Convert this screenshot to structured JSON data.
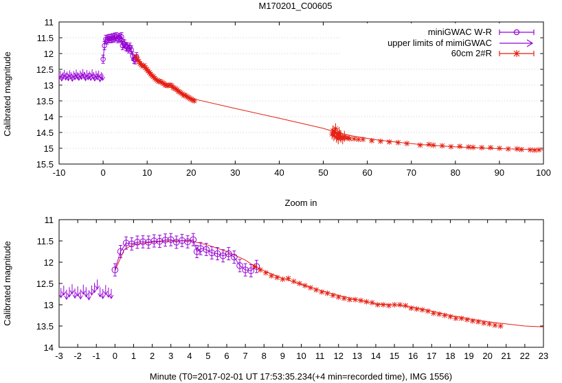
{
  "figure": {
    "xlabel": "Minute (T0=2017-02-01 UT 17:53:35.234(+4 min=recorded time), IMG 1556)"
  },
  "legend": [
    {
      "label": "miniGWAC W-R",
      "color": "#9400d3",
      "marker": "circle"
    },
    {
      "label": "upper limits of mimiGWAC",
      "color": "#9400d3",
      "marker": "arrow"
    },
    {
      "label": "60cm 2#R",
      "color": "#e51e10",
      "marker": "star"
    }
  ],
  "chart_data": [
    {
      "type": "scatter",
      "title": "M170201_C00605",
      "xlabel": "",
      "ylabel": "Calibrated magnitude",
      "xlim": [
        -10,
        100
      ],
      "ylim": [
        15.5,
        11
      ],
      "y_inverted": true,
      "xticks": [
        "-10",
        "0",
        "10",
        "20",
        "30",
        "40",
        "50",
        "60",
        "70",
        "80",
        "90",
        "100"
      ],
      "yticks": [
        "11",
        "11.5",
        "12",
        "12.5",
        "13",
        "13.5",
        "14",
        "14.5",
        "15",
        "15.5"
      ],
      "grid": "dotted",
      "legend_position": "top-right",
      "series": [
        {
          "name": "upper limits of mimiGWAC",
          "color": "#9400d3",
          "x": [
            -10,
            -9.7,
            -9.4,
            -9.1,
            -8.8,
            -8.5,
            -8.2,
            -7.9,
            -7.6,
            -7.3,
            -7.0,
            -6.7,
            -6.4,
            -6.1,
            -5.8,
            -5.5,
            -5.2,
            -4.9,
            -4.6,
            -4.3,
            -4.0,
            -3.7,
            -3.4,
            -3.1,
            -2.8,
            -2.5,
            -2.2,
            -1.9,
            -1.6,
            -1.3,
            -1.0,
            -0.7,
            -0.4,
            -0.1
          ],
          "y": [
            12.72,
            12.66,
            12.76,
            12.7,
            12.63,
            12.73,
            12.68,
            12.75,
            12.64,
            12.7,
            12.77,
            12.66,
            12.72,
            12.62,
            12.7,
            12.74,
            12.65,
            12.71,
            12.6,
            12.69,
            12.75,
            12.63,
            12.72,
            12.67,
            12.74,
            12.61,
            12.7,
            12.76,
            12.66,
            12.72,
            12.65,
            12.78,
            12.7,
            12.74
          ]
        },
        {
          "name": "miniGWAC W-R",
          "color": "#9400d3",
          "x": [
            0,
            0.3,
            0.6,
            0.9,
            1.2,
            1.5,
            1.8,
            2.1,
            2.4,
            2.7,
            3.0,
            3.3,
            3.6,
            3.9,
            4.2,
            4.4,
            4.6,
            4.9,
            5.2,
            5.5,
            5.8,
            6.1,
            6.4,
            6.7,
            7.0,
            7.3,
            7.6
          ],
          "y": [
            12.18,
            11.75,
            11.55,
            11.57,
            11.53,
            11.52,
            11.53,
            11.5,
            11.51,
            11.48,
            11.47,
            11.53,
            11.49,
            11.52,
            11.47,
            11.75,
            11.68,
            11.7,
            11.78,
            11.8,
            11.85,
            11.8,
            11.88,
            12.08,
            12.18,
            12.2,
            12.1
          ]
        },
        {
          "name": "60cm 2#R",
          "color": "#e51e10",
          "x": [
            7.5,
            7.8,
            8.1,
            8.4,
            8.7,
            9.0,
            9.3,
            9.6,
            9.9,
            10.2,
            10.5,
            10.8,
            11.1,
            11.4,
            11.7,
            12.0,
            12.3,
            12.6,
            12.9,
            13.2,
            13.5,
            13.8,
            14.1,
            14.4,
            14.7,
            15.0,
            15.3,
            15.6,
            15.9,
            16.2,
            16.5,
            16.8,
            17.1,
            17.4,
            17.7,
            18.0,
            18.3,
            18.6,
            18.9,
            19.2,
            19.5,
            19.8,
            20.1,
            20.4,
            20.7,
            52.0,
            52.2,
            52.4,
            52.6,
            52.8,
            53.0,
            53.2,
            53.4,
            53.6,
            53.8,
            54.0,
            54.4,
            54.8,
            55.2,
            55.6,
            56.0,
            57.0,
            58.0,
            59.0,
            61.0,
            63.0,
            65.0,
            67.0,
            69.0,
            72.0,
            74.0,
            75.0,
            77.0,
            79.0,
            81.0,
            83.0,
            84.0,
            86.0,
            88.0,
            90.0,
            92.0,
            94.0,
            95.0,
            97.0,
            98.0,
            99.0
          ],
          "y": [
            12.1,
            12.18,
            12.25,
            12.32,
            12.36,
            12.4,
            12.38,
            12.45,
            12.5,
            12.55,
            12.6,
            12.65,
            12.7,
            12.73,
            12.78,
            12.82,
            12.85,
            12.88,
            12.88,
            12.9,
            12.93,
            12.95,
            13.0,
            13.0,
            13.02,
            13.0,
            13.0,
            13.02,
            13.08,
            13.1,
            13.12,
            13.15,
            13.2,
            13.22,
            13.25,
            13.28,
            13.32,
            13.32,
            13.35,
            13.38,
            13.4,
            13.43,
            13.45,
            13.48,
            13.5,
            14.55,
            14.45,
            14.6,
            14.5,
            14.38,
            14.65,
            14.55,
            14.7,
            14.5,
            14.6,
            14.65,
            14.7,
            14.62,
            14.68,
            14.66,
            14.7,
            14.7,
            14.72,
            14.72,
            14.76,
            14.78,
            14.8,
            14.82,
            14.85,
            14.9,
            14.88,
            14.9,
            14.92,
            14.95,
            14.94,
            14.96,
            14.97,
            14.98,
            14.98,
            15.0,
            15.02,
            15.02,
            15.04,
            15.05,
            15.06,
            15.05
          ]
        }
      ],
      "fit_line": {
        "color": "#e51e10",
        "x": [
          7.5,
          10,
          12,
          14,
          16,
          18,
          20,
          30,
          40,
          50,
          53,
          57,
          62,
          67,
          72,
          77,
          82,
          87,
          92,
          97,
          100
        ],
        "y": [
          12.1,
          12.5,
          12.8,
          12.98,
          13.05,
          13.25,
          13.42,
          13.74,
          14.05,
          14.37,
          14.5,
          14.62,
          14.73,
          14.81,
          14.88,
          14.93,
          14.97,
          15.0,
          15.02,
          15.04,
          15.05
        ]
      }
    },
    {
      "type": "scatter",
      "title": "Zoom in",
      "xlabel": "Minute (T0=2017-02-01 UT 17:53:35.234(+4 min=recorded time), IMG 1556)",
      "ylabel": "Calibrated magnitude",
      "xlim": [
        -3,
        23
      ],
      "ylim": [
        14,
        11
      ],
      "y_inverted": true,
      "xticks": [
        "-3",
        "-2",
        "-1",
        "0",
        "1",
        "2",
        "3",
        "4",
        "5",
        "6",
        "7",
        "8",
        "9",
        "10",
        "11",
        "12",
        "13",
        "14",
        "15",
        "16",
        "17",
        "18",
        "19",
        "20",
        "21",
        "22",
        "23"
      ],
      "yticks": [
        "11",
        "11.5",
        "12",
        "12.5",
        "13",
        "13.5",
        "14"
      ],
      "grid": "none",
      "series": [
        {
          "name": "upper limits of mimiGWAC",
          "color": "#9400d3",
          "x": [
            -2.9,
            -2.75,
            -2.6,
            -2.45,
            -2.3,
            -2.15,
            -2.0,
            -1.85,
            -1.7,
            -1.55,
            -1.4,
            -1.25,
            -1.1,
            -0.95,
            -0.8,
            -0.65,
            -0.5,
            -0.35,
            -0.2
          ],
          "y": [
            12.72,
            12.66,
            12.76,
            12.7,
            12.63,
            12.73,
            12.68,
            12.75,
            12.64,
            12.7,
            12.77,
            12.66,
            12.6,
            12.52,
            12.7,
            12.74,
            12.65,
            12.71,
            12.74
          ]
        },
        {
          "name": "miniGWAC W-R",
          "color": "#9400d3",
          "x": [
            0,
            0.3,
            0.6,
            0.9,
            1.2,
            1.5,
            1.8,
            2.1,
            2.4,
            2.7,
            3.0,
            3.3,
            3.6,
            3.9,
            4.2,
            4.4,
            4.6,
            4.9,
            5.2,
            5.5,
            5.8,
            6.1,
            6.4,
            6.7,
            7.0,
            7.3,
            7.6
          ],
          "y": [
            12.18,
            11.75,
            11.55,
            11.57,
            11.53,
            11.52,
            11.53,
            11.5,
            11.51,
            11.48,
            11.47,
            11.53,
            11.49,
            11.52,
            11.47,
            11.75,
            11.68,
            11.7,
            11.78,
            11.8,
            11.85,
            11.8,
            11.88,
            12.08,
            12.18,
            12.2,
            12.1
          ]
        },
        {
          "name": "60cm 2#R",
          "color": "#e51e10",
          "x": [
            7.5,
            7.8,
            8.1,
            8.4,
            8.7,
            9.0,
            9.3,
            9.6,
            9.9,
            10.2,
            10.5,
            10.8,
            11.1,
            11.4,
            11.7,
            12.0,
            12.3,
            12.6,
            12.9,
            13.2,
            13.5,
            13.8,
            14.1,
            14.4,
            14.7,
            15.0,
            15.3,
            15.6,
            15.9,
            16.2,
            16.5,
            16.8,
            17.1,
            17.4,
            17.7,
            18.0,
            18.3,
            18.6,
            18.9,
            19.2,
            19.5,
            19.8,
            20.1,
            20.4,
            20.7
          ],
          "y": [
            12.1,
            12.18,
            12.25,
            12.32,
            12.36,
            12.4,
            12.38,
            12.45,
            12.5,
            12.55,
            12.6,
            12.65,
            12.7,
            12.73,
            12.78,
            12.82,
            12.85,
            12.88,
            12.88,
            12.9,
            12.93,
            12.95,
            13.0,
            13.0,
            13.02,
            13.0,
            13.0,
            13.02,
            13.08,
            13.1,
            13.12,
            13.15,
            13.2,
            13.22,
            13.25,
            13.28,
            13.32,
            13.32,
            13.35,
            13.38,
            13.4,
            13.43,
            13.45,
            13.48,
            13.5
          ]
        }
      ],
      "fit_line": {
        "color": "#e51e10",
        "x": [
          0.0,
          0.5,
          1.0,
          2.0,
          3.0,
          4.0,
          5.0,
          6.0,
          7.0,
          7.5,
          8,
          9,
          10,
          11,
          12,
          13,
          14,
          15,
          16,
          17,
          18,
          19,
          20,
          21,
          22,
          23
        ],
        "y": [
          12.2,
          11.7,
          11.58,
          11.53,
          11.5,
          11.49,
          11.6,
          11.75,
          11.95,
          12.1,
          12.2,
          12.38,
          12.52,
          12.66,
          12.78,
          12.88,
          12.98,
          13.0,
          13.06,
          13.15,
          13.25,
          13.33,
          13.4,
          13.45,
          13.5,
          13.52
        ]
      }
    }
  ]
}
